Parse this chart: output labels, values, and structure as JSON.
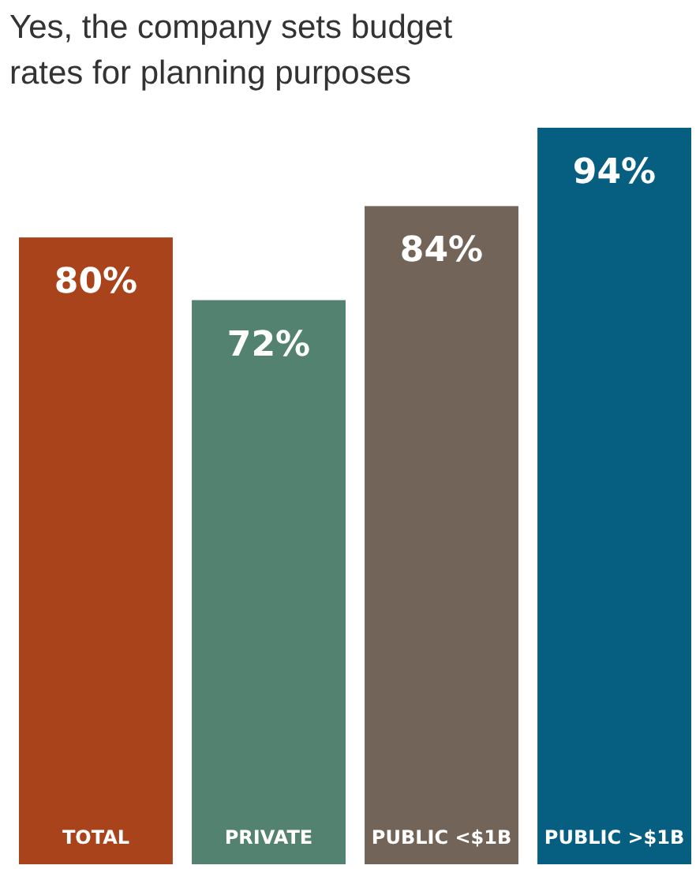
{
  "chart_data": {
    "type": "bar",
    "title": "Yes, the company sets budget rates for planning purposes",
    "categories": [
      "TOTAL",
      "PRIVATE",
      "PUBLIC <$1B",
      "PUBLIC >$1B"
    ],
    "values": [
      80,
      72,
      84,
      94
    ],
    "colors": [
      "#a8431c",
      "#548271",
      "#736459",
      "#065f80"
    ],
    "value_labels": [
      "80%",
      "72%",
      "84%",
      "94%"
    ]
  }
}
